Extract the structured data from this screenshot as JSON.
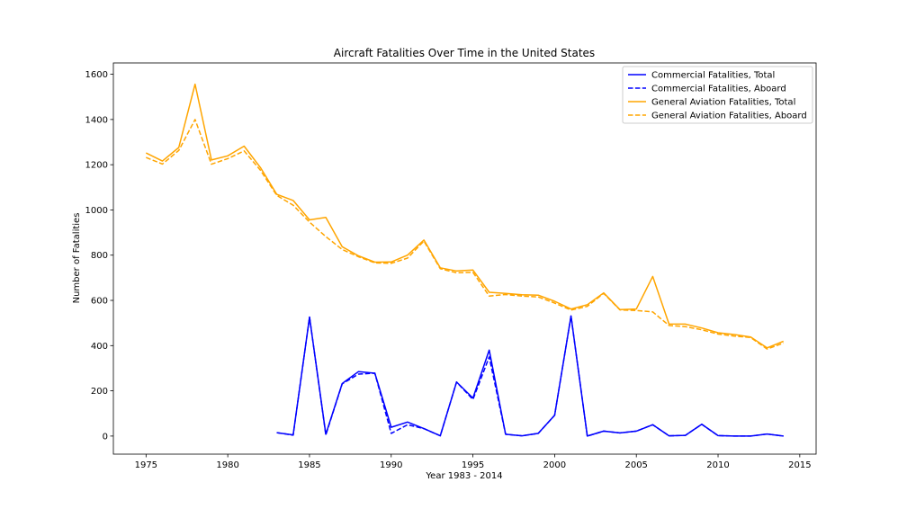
{
  "chart_data": {
    "type": "line",
    "title": "Aircraft Fatalities Over Time in the United States",
    "xlabel": "Year 1983 - 2014",
    "ylabel": "Number of Fatalities",
    "xlim": [
      1973,
      2016
    ],
    "ylim": [
      -80,
      1650
    ],
    "xticks": [
      1975,
      1980,
      1985,
      1990,
      1995,
      2000,
      2005,
      2010,
      2015
    ],
    "yticks": [
      0,
      200,
      400,
      600,
      800,
      1000,
      1200,
      1400,
      1600
    ],
    "grid": false,
    "legend_position": "top-right",
    "series": [
      {
        "name": "Commercial Fatalities, Total",
        "color": "#0000ff",
        "style": "solid",
        "x": [
          1983,
          1984,
          1985,
          1986,
          1987,
          1988,
          1989,
          1990,
          1991,
          1992,
          1993,
          1994,
          1995,
          1996,
          1997,
          1998,
          1999,
          2000,
          2001,
          2002,
          2003,
          2004,
          2005,
          2006,
          2007,
          2008,
          2009,
          2010,
          2011,
          2012,
          2013,
          2014
        ],
        "values": [
          15,
          5,
          526,
          8,
          232,
          285,
          278,
          39,
          62,
          33,
          1,
          239,
          168,
          380,
          8,
          1,
          12,
          92,
          531,
          0,
          22,
          14,
          22,
          50,
          1,
          3,
          52,
          2,
          0,
          0,
          9,
          0
        ]
      },
      {
        "name": "Commercial Fatalities, Aboard",
        "color": "#0000ff",
        "style": "dashed",
        "x": [
          1983,
          1984,
          1985,
          1986,
          1987,
          1988,
          1989,
          1990,
          1991,
          1992,
          1993,
          1994,
          1995,
          1996,
          1997,
          1998,
          1999,
          2000,
          2001,
          2002,
          2003,
          2004,
          2005,
          2006,
          2007,
          2008,
          2009,
          2010,
          2011,
          2012,
          2013,
          2014
        ],
        "values": [
          15,
          4,
          526,
          5,
          231,
          274,
          278,
          12,
          50,
          33,
          1,
          239,
          162,
          350,
          8,
          1,
          12,
          92,
          531,
          0,
          22,
          14,
          22,
          50,
          1,
          3,
          52,
          2,
          0,
          0,
          9,
          0
        ]
      },
      {
        "name": "General Aviation Fatalities, Total",
        "color": "#ffa500",
        "style": "solid",
        "x": [
          1975,
          1976,
          1977,
          1978,
          1979,
          1980,
          1981,
          1982,
          1983,
          1984,
          1985,
          1986,
          1987,
          1988,
          1989,
          1990,
          1991,
          1992,
          1993,
          1994,
          1995,
          1996,
          1997,
          1998,
          1999,
          2000,
          2001,
          2002,
          2003,
          2004,
          2005,
          2006,
          2007,
          2008,
          2009,
          2010,
          2011,
          2012,
          2013,
          2014
        ],
        "values": [
          1252,
          1216,
          1276,
          1556,
          1221,
          1239,
          1282,
          1187,
          1069,
          1042,
          956,
          967,
          837,
          797,
          769,
          770,
          800,
          867,
          744,
          730,
          734,
          636,
          631,
          625,
          623,
          596,
          562,
          581,
          633,
          559,
          562,
          706,
          496,
          495,
          478,
          457,
          449,
          438,
          390,
          419
        ]
      },
      {
        "name": "General Aviation Fatalities, Aboard",
        "color": "#ffa500",
        "style": "dashed",
        "x": [
          1975,
          1976,
          1977,
          1978,
          1979,
          1980,
          1981,
          1982,
          1983,
          1984,
          1985,
          1986,
          1987,
          1988,
          1989,
          1990,
          1991,
          1992,
          1993,
          1994,
          1995,
          1996,
          1997,
          1998,
          1999,
          2000,
          2001,
          2002,
          2003,
          2004,
          2005,
          2006,
          2007,
          2008,
          2009,
          2010,
          2011,
          2012,
          2013,
          2014
        ],
        "values": [
          1232,
          1203,
          1263,
          1400,
          1202,
          1227,
          1261,
          1175,
          1064,
          1021,
          946,
          882,
          825,
          793,
          766,
          764,
          787,
          862,
          740,
          722,
          724,
          619,
          626,
          619,
          615,
          588,
          557,
          574,
          631,
          558,
          555,
          549,
          489,
          484,
          470,
          451,
          442,
          436,
          385,
          411
        ]
      }
    ]
  }
}
